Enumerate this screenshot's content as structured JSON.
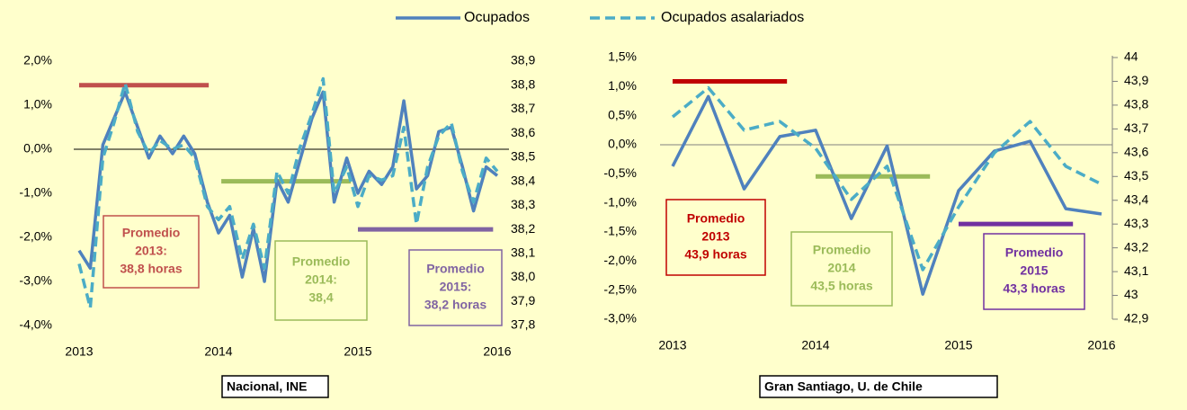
{
  "legend_series_of": 0,
  "chart_data": [
    {
      "type": "line",
      "caption": "Nacional, INE",
      "x": [
        2013,
        2013.08,
        2013.17,
        2013.25,
        2013.33,
        2013.42,
        2013.5,
        2013.58,
        2013.67,
        2013.75,
        2013.83,
        2013.92,
        2014,
        2014.08,
        2014.17,
        2014.25,
        2014.33,
        2014.42,
        2014.5,
        2014.58,
        2014.67,
        2014.75,
        2014.83,
        2014.92,
        2015,
        2015.08,
        2015.17,
        2015.25,
        2015.33,
        2015.42,
        2015.5,
        2015.58,
        2015.67,
        2015.75,
        2015.83,
        2015.92,
        2016
      ],
      "xlim": [
        2013,
        2016
      ],
      "xticks": [
        2013,
        2014,
        2015,
        2016
      ],
      "ylim": [
        -4,
        2
      ],
      "yticks": [
        {
          "value": -4,
          "label": "-4,0%"
        },
        {
          "value": -3,
          "label": "-3,0%"
        },
        {
          "value": -2,
          "label": "-2,0%"
        },
        {
          "value": -1,
          "label": "-1,0%"
        },
        {
          "value": 0,
          "label": "0,0%"
        },
        {
          "value": 1,
          "label": "1,0%"
        },
        {
          "value": 2,
          "label": "2,0%"
        }
      ],
      "y2lim": [
        37.8,
        38.9
      ],
      "y2ticks": [
        {
          "value": 37.8,
          "label": "37,8"
        },
        {
          "value": 37.9,
          "label": "37,9"
        },
        {
          "value": 38.0,
          "label": "38,0"
        },
        {
          "value": 38.1,
          "label": "38,1"
        },
        {
          "value": 38.2,
          "label": "38,2"
        },
        {
          "value": 38.3,
          "label": "38,3"
        },
        {
          "value": 38.4,
          "label": "38,4"
        },
        {
          "value": 38.5,
          "label": "38,5"
        },
        {
          "value": 38.6,
          "label": "38,6"
        },
        {
          "value": 38.7,
          "label": "38,7"
        },
        {
          "value": 38.8,
          "label": "38,8"
        },
        {
          "value": 38.9,
          "label": "38,9"
        }
      ],
      "zero_line_color": "#000000",
      "y2_tick_marks": false,
      "series": [
        {
          "name": "Ocupados",
          "color": "#4f81bd",
          "dashed": false,
          "values": [
            -2.3,
            -2.7,
            0.1,
            0.7,
            1.3,
            0.5,
            -0.2,
            0.3,
            -0.1,
            0.3,
            -0.1,
            -1.2,
            -1.9,
            -1.5,
            -2.9,
            -1.8,
            -3.0,
            -0.7,
            -1.2,
            -0.3,
            0.7,
            1.3,
            -1.2,
            -0.2,
            -1.0,
            -0.5,
            -0.8,
            -0.4,
            1.1,
            -0.9,
            -0.6,
            0.4,
            0.5,
            -0.4,
            -1.4,
            -0.4,
            -0.6
          ]
        },
        {
          "name": "Ocupados asalariados",
          "color": "#4bacc6",
          "dashed": true,
          "values": [
            -2.6,
            -3.6,
            -0.2,
            0.6,
            1.5,
            0.4,
            -0.1,
            0.2,
            0.0,
            0.1,
            -0.2,
            -1.3,
            -1.6,
            -1.3,
            -2.5,
            -1.7,
            -2.7,
            -0.5,
            -1.0,
            0.0,
            0.8,
            1.6,
            -1.0,
            -0.4,
            -1.3,
            -0.6,
            -0.7,
            -0.6,
            0.5,
            -1.7,
            -0.4,
            0.3,
            0.6,
            -0.5,
            -1.2,
            -0.2,
            -0.5
          ]
        }
      ],
      "averages": [
        {
          "value": 38.8,
          "x": [
            2013,
            2013.93
          ],
          "color": "#c0504d",
          "label": [
            "Promedio",
            "2013:",
            "38,8 horas"
          ]
        },
        {
          "value": 38.4,
          "x": [
            2014.02,
            2014.95
          ],
          "color": "#9bbb59",
          "label": [
            "Promedio",
            "2014:",
            "38,4"
          ]
        },
        {
          "value": 38.2,
          "x": [
            2015,
            2015.97
          ],
          "color": "#8064a2",
          "label": [
            "Promedio",
            "2015:",
            "38,2 horas"
          ]
        }
      ]
    },
    {
      "type": "line",
      "caption": "Gran Santiago, U. de Chile",
      "x": [
        2013,
        2013.25,
        2013.5,
        2013.75,
        2014,
        2014.25,
        2014.5,
        2014.75,
        2015,
        2015.25,
        2015.5,
        2015.75,
        2016
      ],
      "xlim": [
        2012.95,
        2016
      ],
      "xticks": [
        2013,
        2014,
        2015,
        2016
      ],
      "ylim": [
        -3,
        1.5
      ],
      "yticks": [
        {
          "value": -3,
          "label": "-3,0%"
        },
        {
          "value": -2.5,
          "label": "-2,5%"
        },
        {
          "value": -2,
          "label": "-2,0%"
        },
        {
          "value": -1.5,
          "label": "-1,5%"
        },
        {
          "value": -1,
          "label": "-1,0%"
        },
        {
          "value": -0.5,
          "label": "-0,5%"
        },
        {
          "value": 0,
          "label": "0,0%"
        },
        {
          "value": 0.5,
          "label": "0,5%"
        },
        {
          "value": 1,
          "label": "1,0%"
        },
        {
          "value": 1.5,
          "label": "1,5%"
        }
      ],
      "y2lim": [
        42.9,
        44
      ],
      "y2ticks": [
        {
          "value": 42.9,
          "label": "42,9"
        },
        43,
        {
          "value": 43.1,
          "label": "43,1"
        },
        {
          "value": 43.2,
          "label": "43,2"
        },
        {
          "value": 43.3,
          "label": "43,3"
        },
        {
          "value": 43.4,
          "label": "43,4"
        },
        {
          "value": 43.5,
          "label": "43,5"
        },
        {
          "value": 43.6,
          "label": "43,6"
        },
        {
          "value": 43.7,
          "label": "43,7"
        },
        {
          "value": 43.8,
          "label": "43,8"
        },
        {
          "value": 43.9,
          "label": "43,9"
        },
        44
      ],
      "zero_line_color": "#808080",
      "y2_tick_marks": true,
      "series": [
        {
          "name": "Ocupados",
          "color": "#4f81bd",
          "dashed": false,
          "values": [
            -0.37,
            0.83,
            -0.76,
            0.14,
            0.25,
            -1.27,
            -0.02,
            -2.57,
            -0.79,
            -0.11,
            0.06,
            -1.1,
            -1.19
          ]
        },
        {
          "name": "Ocupados asalariados",
          "color": "#4bacc6",
          "dashed": true,
          "values": [
            0.48,
            0.98,
            0.25,
            0.4,
            -0.06,
            -0.94,
            -0.37,
            -2.15,
            -1.07,
            -0.14,
            0.4,
            -0.37,
            -0.68
          ]
        }
      ],
      "averages": [
        {
          "value": 43.9,
          "x": [
            2013,
            2013.8
          ],
          "color": "#c00000",
          "label": [
            "Promedio",
            "2013",
            "43,9 horas"
          ]
        },
        {
          "value": 43.5,
          "x": [
            2014,
            2014.8
          ],
          "color": "#9bbb59",
          "label": [
            "Promedio",
            "2014",
            "43,5 horas"
          ]
        },
        {
          "value": 43.3,
          "x": [
            2015,
            2015.8
          ],
          "color": "#7030a0",
          "label": [
            "Promedio",
            "2015",
            "43,3 horas"
          ]
        }
      ]
    }
  ]
}
